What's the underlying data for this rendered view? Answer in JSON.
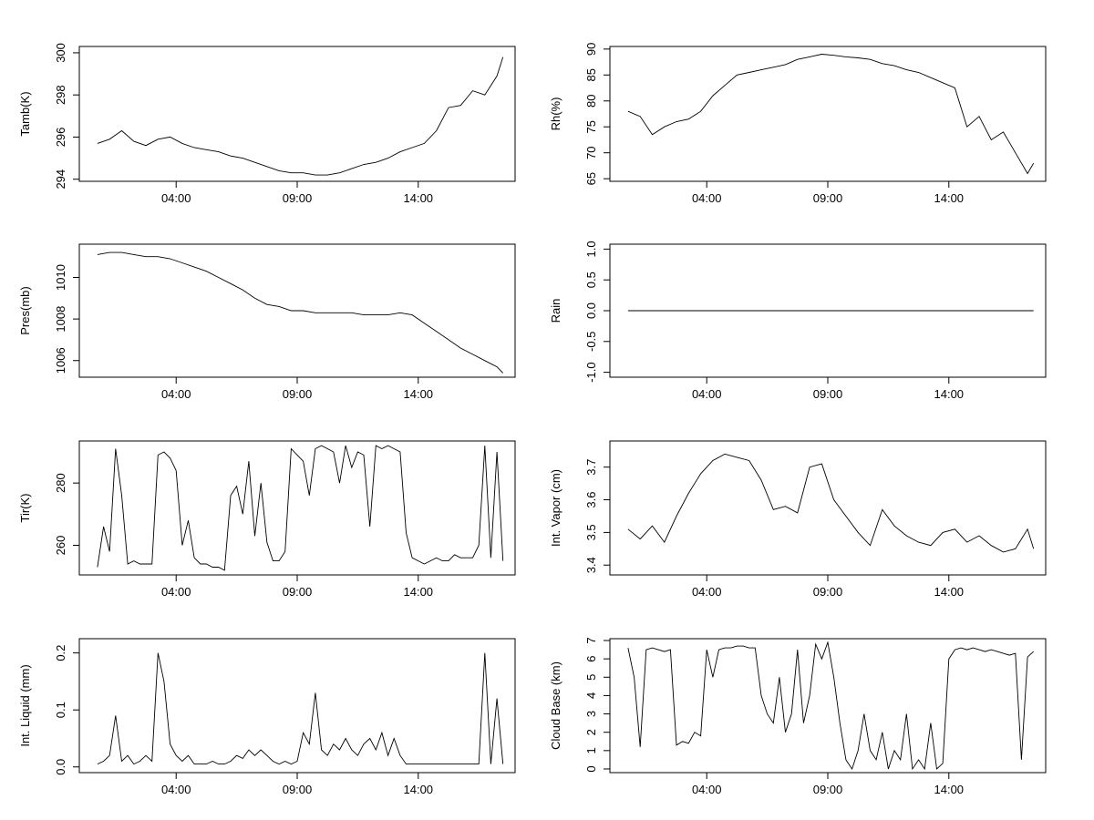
{
  "chart_data": [
    {
      "type": "line",
      "ylabel": "Tamb(K)",
      "xticks": [
        "04:00",
        "09:00",
        "14:00"
      ],
      "yticks": [
        294,
        296,
        298,
        300
      ],
      "ylim": [
        293.9,
        300.3
      ],
      "x": [
        0.75,
        1.25,
        1.75,
        2.25,
        2.75,
        3.25,
        3.75,
        4.25,
        4.75,
        5.25,
        5.75,
        6.25,
        6.75,
        7.25,
        7.75,
        8.25,
        8.75,
        9.25,
        9.75,
        10.25,
        10.75,
        11.25,
        11.75,
        12.25,
        12.75,
        13.25,
        13.75,
        14.25,
        14.75,
        15.25,
        15.75,
        16.25,
        16.75,
        17.25,
        17.5
      ],
      "values": [
        295.7,
        295.9,
        296.3,
        295.8,
        295.6,
        295.9,
        296.0,
        295.7,
        295.5,
        295.4,
        295.3,
        295.1,
        295.0,
        294.8,
        294.6,
        294.4,
        294.3,
        294.3,
        294.2,
        294.2,
        294.3,
        294.5,
        294.7,
        294.8,
        295.0,
        295.3,
        295.5,
        295.7,
        296.3,
        297.4,
        297.5,
        298.2,
        298.0,
        298.9,
        299.8
      ]
    },
    {
      "type": "line",
      "ylabel": "Rh(%)",
      "xticks": [
        "04:00",
        "09:00",
        "14:00"
      ],
      "yticks": [
        65,
        70,
        75,
        80,
        85,
        90
      ],
      "ylim": [
        64.5,
        90.5
      ],
      "x": [
        0.75,
        1.25,
        1.75,
        2.25,
        2.75,
        3.25,
        3.75,
        4.25,
        4.75,
        5.25,
        5.75,
        6.25,
        6.75,
        7.25,
        7.75,
        8.25,
        8.75,
        9.25,
        9.75,
        10.25,
        10.75,
        11.25,
        11.75,
        12.25,
        12.75,
        13.25,
        13.75,
        14.25,
        14.75,
        15.25,
        15.75,
        16.25,
        16.75,
        17.25,
        17.5
      ],
      "values": [
        78,
        77,
        73.5,
        75,
        76,
        76.5,
        78,
        81,
        83,
        85,
        85.5,
        86,
        86.5,
        87,
        88,
        88.5,
        89,
        88.8,
        88.5,
        88.3,
        88,
        87.2,
        86.8,
        86,
        85.5,
        84.5,
        83.5,
        82.5,
        75,
        77,
        72.5,
        74,
        70,
        66,
        68
      ]
    },
    {
      "type": "line",
      "ylabel": "Pres(mb)",
      "xticks": [
        "04:00",
        "09:00",
        "14:00"
      ],
      "yticks": [
        1006,
        1008,
        1010
      ],
      "ylim": [
        1005.2,
        1011.6
      ],
      "x": [
        0.75,
        1.25,
        1.75,
        2.25,
        2.75,
        3.25,
        3.75,
        4.25,
        4.75,
        5.25,
        5.75,
        6.25,
        6.75,
        7.25,
        7.75,
        8.25,
        8.75,
        9.25,
        9.75,
        10.25,
        10.75,
        11.25,
        11.75,
        12.25,
        12.75,
        13.25,
        13.75,
        14.25,
        14.75,
        15.25,
        15.75,
        16.25,
        16.75,
        17.25,
        17.5
      ],
      "values": [
        1011.1,
        1011.2,
        1011.2,
        1011.1,
        1011.0,
        1011.0,
        1010.9,
        1010.7,
        1010.5,
        1010.3,
        1010.0,
        1009.7,
        1009.4,
        1009.0,
        1008.7,
        1008.6,
        1008.4,
        1008.4,
        1008.3,
        1008.3,
        1008.3,
        1008.3,
        1008.2,
        1008.2,
        1008.2,
        1008.3,
        1008.2,
        1007.8,
        1007.4,
        1007.0,
        1006.6,
        1006.3,
        1006.0,
        1005.7,
        1005.4
      ]
    },
    {
      "type": "line",
      "ylabel": "Rain",
      "xticks": [
        "04:00",
        "09:00",
        "14:00"
      ],
      "yticks": [
        -1.0,
        -0.5,
        0.0,
        0.5,
        1.0
      ],
      "ylim": [
        -1.08,
        1.08
      ],
      "x": [
        0.75,
        17.5
      ],
      "values": [
        0.0,
        0.0
      ]
    },
    {
      "type": "line",
      "ylabel": "Tir(K)",
      "xticks": [
        "04:00",
        "09:00",
        "14:00"
      ],
      "yticks": [
        260,
        280
      ],
      "ylim": [
        250.5,
        293.5
      ],
      "x": [
        0.75,
        1.0,
        1.25,
        1.5,
        1.75,
        2.0,
        2.25,
        2.5,
        2.75,
        3.0,
        3.25,
        3.5,
        3.75,
        4.0,
        4.25,
        4.5,
        4.75,
        5.0,
        5.25,
        5.5,
        5.75,
        6.0,
        6.25,
        6.5,
        6.75,
        7.0,
        7.25,
        7.5,
        7.75,
        8.0,
        8.25,
        8.5,
        8.75,
        9.0,
        9.25,
        9.5,
        9.75,
        10.0,
        10.25,
        10.5,
        10.75,
        11.0,
        11.25,
        11.5,
        11.75,
        12.0,
        12.25,
        12.5,
        12.75,
        13.0,
        13.25,
        13.5,
        13.75,
        14.0,
        14.25,
        14.5,
        14.75,
        15.0,
        15.25,
        15.5,
        15.75,
        16.0,
        16.25,
        16.5,
        16.75,
        17.0,
        17.25,
        17.5
      ],
      "values": [
        253,
        266,
        258,
        291,
        276,
        254,
        255,
        254,
        254,
        254,
        289,
        290,
        288,
        284,
        260,
        268,
        256,
        254,
        254,
        253,
        253,
        252,
        276,
        279,
        270,
        287,
        263,
        280,
        261,
        255,
        255,
        258,
        291,
        289,
        287,
        276,
        291,
        292,
        291,
        290,
        280,
        292,
        285,
        290,
        289,
        266,
        292,
        291,
        292,
        291,
        290,
        264,
        256,
        255,
        254,
        255,
        256,
        255,
        255,
        257,
        256,
        256,
        256,
        260,
        292,
        256,
        290,
        255
      ]
    },
    {
      "type": "line",
      "ylabel": "Int. Vapor (cm)",
      "xticks": [
        "04:00",
        "09:00",
        "14:00"
      ],
      "yticks": [
        3.4,
        3.5,
        3.6,
        3.7
      ],
      "ylim": [
        3.37,
        3.78
      ],
      "x": [
        0.75,
        1.25,
        1.75,
        2.25,
        2.75,
        3.25,
        3.75,
        4.25,
        4.75,
        5.25,
        5.75,
        6.25,
        6.75,
        7.25,
        7.75,
        8.25,
        8.75,
        9.25,
        9.75,
        10.25,
        10.75,
        11.25,
        11.75,
        12.25,
        12.75,
        13.25,
        13.75,
        14.25,
        14.75,
        15.25,
        15.75,
        16.25,
        16.75,
        17.25,
        17.5
      ],
      "values": [
        3.51,
        3.48,
        3.52,
        3.47,
        3.55,
        3.62,
        3.68,
        3.72,
        3.74,
        3.73,
        3.72,
        3.66,
        3.57,
        3.58,
        3.56,
        3.7,
        3.71,
        3.6,
        3.55,
        3.5,
        3.46,
        3.57,
        3.52,
        3.49,
        3.47,
        3.46,
        3.5,
        3.51,
        3.47,
        3.49,
        3.46,
        3.44,
        3.45,
        3.51,
        3.45
      ]
    },
    {
      "type": "line",
      "ylabel": "Int. Liquid (mm)",
      "xticks": [
        "04:00",
        "09:00",
        "14:00"
      ],
      "yticks": [
        0.0,
        0.1,
        0.2
      ],
      "ylim": [
        -0.01,
        0.225
      ],
      "x": [
        0.75,
        1.0,
        1.25,
        1.5,
        1.75,
        2.0,
        2.25,
        2.5,
        2.75,
        3.0,
        3.25,
        3.5,
        3.75,
        4.0,
        4.25,
        4.5,
        4.75,
        5.0,
        5.25,
        5.5,
        5.75,
        6.0,
        6.25,
        6.5,
        6.75,
        7.0,
        7.25,
        7.5,
        7.75,
        8.0,
        8.25,
        8.5,
        8.75,
        9.0,
        9.25,
        9.5,
        9.75,
        10.0,
        10.25,
        10.5,
        10.75,
        11.0,
        11.25,
        11.5,
        11.75,
        12.0,
        12.25,
        12.5,
        12.75,
        13.0,
        13.25,
        13.5,
        13.75,
        14.0,
        14.25,
        14.5,
        14.75,
        15.0,
        15.25,
        15.5,
        15.75,
        16.0,
        16.25,
        16.5,
        16.75,
        17.0,
        17.25,
        17.5
      ],
      "values": [
        0.005,
        0.01,
        0.02,
        0.09,
        0.01,
        0.02,
        0.005,
        0.01,
        0.02,
        0.01,
        0.2,
        0.15,
        0.04,
        0.02,
        0.01,
        0.02,
        0.005,
        0.005,
        0.005,
        0.01,
        0.005,
        0.005,
        0.01,
        0.02,
        0.015,
        0.03,
        0.02,
        0.03,
        0.02,
        0.01,
        0.005,
        0.01,
        0.005,
        0.01,
        0.06,
        0.04,
        0.13,
        0.03,
        0.02,
        0.04,
        0.03,
        0.05,
        0.03,
        0.02,
        0.04,
        0.05,
        0.03,
        0.06,
        0.02,
        0.05,
        0.02,
        0.005,
        0.005,
        0.005,
        0.005,
        0.005,
        0.005,
        0.005,
        0.005,
        0.005,
        0.005,
        0.005,
        0.005,
        0.005,
        0.2,
        0.005,
        0.12,
        0.005
      ]
    },
    {
      "type": "line",
      "ylabel": "Cloud Base (km)",
      "xticks": [
        "04:00",
        "09:00",
        "14:00"
      ],
      "yticks": [
        0,
        1,
        2,
        3,
        4,
        5,
        6,
        7
      ],
      "ylim": [
        -0.2,
        7.1
      ],
      "x": [
        0.75,
        1.0,
        1.25,
        1.5,
        1.75,
        2.0,
        2.25,
        2.5,
        2.75,
        3.0,
        3.25,
        3.5,
        3.75,
        4.0,
        4.25,
        4.5,
        4.75,
        5.0,
        5.25,
        5.5,
        5.75,
        6.0,
        6.25,
        6.5,
        6.75,
        7.0,
        7.25,
        7.5,
        7.75,
        8.0,
        8.25,
        8.5,
        8.75,
        9.0,
        9.25,
        9.5,
        9.75,
        10.0,
        10.25,
        10.5,
        10.75,
        11.0,
        11.25,
        11.5,
        11.75,
        12.0,
        12.25,
        12.5,
        12.75,
        13.0,
        13.25,
        13.5,
        13.75,
        14.0,
        14.25,
        14.5,
        14.75,
        15.0,
        15.25,
        15.5,
        15.75,
        16.0,
        16.25,
        16.5,
        16.75,
        17.0,
        17.25,
        17.5
      ],
      "values": [
        6.6,
        5,
        1.2,
        6.5,
        6.6,
        6.5,
        6.4,
        6.5,
        1.3,
        1.5,
        1.4,
        2,
        1.8,
        6.5,
        5,
        6.5,
        6.6,
        6.6,
        6.7,
        6.7,
        6.6,
        6.6,
        4,
        3,
        2.5,
        5,
        2,
        3,
        6.5,
        2.5,
        4,
        6.8,
        6,
        6.9,
        5,
        2.5,
        0.5,
        0,
        1,
        3,
        1,
        0.5,
        2,
        0,
        1,
        0.5,
        3,
        0,
        0.5,
        0,
        2.5,
        0,
        0.3,
        6,
        6.5,
        6.6,
        6.5,
        6.6,
        6.5,
        6.4,
        6.5,
        6.4,
        6.3,
        6.2,
        6.3,
        0.5,
        6.1,
        6.4
      ]
    }
  ]
}
